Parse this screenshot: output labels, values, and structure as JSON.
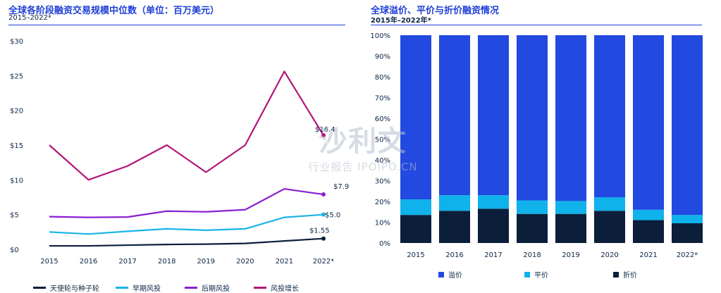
{
  "chart_data": [
    {
      "type": "line",
      "title": "全球各阶段融资交易规模中位数（单位：百万美元）",
      "subtitle": "2015–2022*",
      "categories": [
        "2015",
        "2016",
        "2017",
        "2018",
        "2019",
        "2020",
        "2021",
        "2022*"
      ],
      "y_ticks": [
        "$0",
        "$5",
        "$10",
        "$15",
        "$20",
        "$25",
        "$30"
      ],
      "ylim": [
        0,
        30
      ],
      "series": [
        {
          "name": "天使轮与种子轮",
          "color": "#0b1f3a",
          "values": [
            0.5,
            0.5,
            0.6,
            0.7,
            0.75,
            0.85,
            1.2,
            1.55
          ],
          "end_label": "$1.55"
        },
        {
          "name": "早期风投",
          "color": "#19b5e8",
          "values": [
            2.5,
            2.2,
            2.6,
            2.95,
            2.75,
            2.95,
            4.6,
            5.0
          ],
          "end_label": "$5.0"
        },
        {
          "name": "后期风投",
          "color": "#8b1fd1",
          "values": [
            4.7,
            4.6,
            4.65,
            5.5,
            5.4,
            5.7,
            8.7,
            7.9
          ],
          "end_label": "$7.9"
        },
        {
          "name": "风投增长",
          "color": "#b3157a",
          "values": [
            15.0,
            10.0,
            12.0,
            15.0,
            11.1,
            15.0,
            25.6,
            16.4
          ],
          "end_label": "$16.4"
        }
      ]
    },
    {
      "type": "bar",
      "stacked": true,
      "title": "全球溢价、平价与折价融资情况",
      "subtitle": "2015年–2022年*",
      "categories": [
        "2015",
        "2016",
        "2017",
        "2018",
        "2019",
        "2020",
        "2021",
        "2022*"
      ],
      "y_ticks": [
        "0%",
        "10%",
        "20%",
        "30%",
        "40%",
        "50%",
        "60%",
        "70%",
        "80%",
        "90%",
        "100%"
      ],
      "ylim": [
        0,
        100
      ],
      "series": [
        {
          "name": "折价",
          "color": "#0b1f3a",
          "values": [
            13.5,
            15.5,
            16.5,
            14.0,
            14.0,
            15.5,
            11.0,
            9.5
          ]
        },
        {
          "name": "平价",
          "color": "#0fb2ea",
          "values": [
            7.5,
            7.5,
            6.5,
            6.5,
            6.2,
            6.5,
            5.0,
            4.0
          ]
        },
        {
          "name": "溢价",
          "color": "#2249e0",
          "values": [
            79.0,
            77.0,
            77.0,
            79.5,
            79.8,
            78.0,
            84.0,
            86.5
          ]
        }
      ],
      "legend_order": [
        "溢价",
        "平价",
        "折价"
      ]
    }
  ],
  "watermark": {
    "line1": "沙利文",
    "line2": "行业报告 IPOIPO.CN"
  }
}
